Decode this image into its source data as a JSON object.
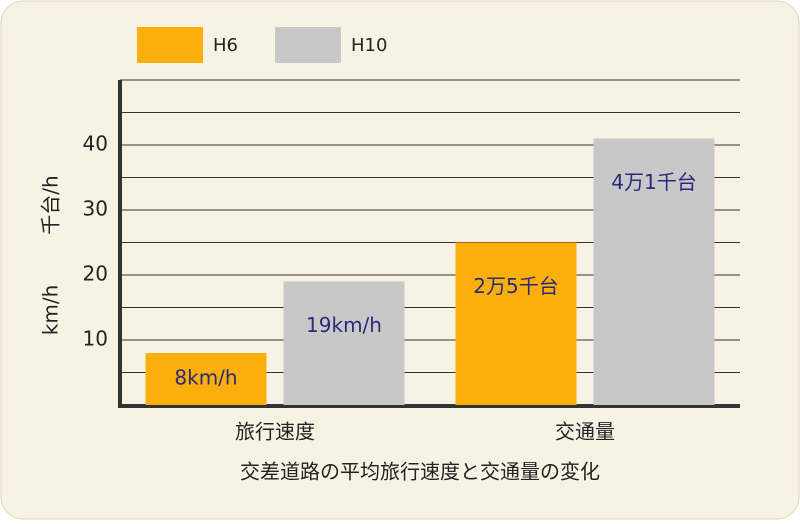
{
  "chart_data": {
    "type": "bar",
    "legend_position": "top-left",
    "ylabel": "km/h",
    "ylabel2": "千台/h",
    "xlabel": "交差道路の平均旅行速度と交通量の変化",
    "categories": [
      "旅行速度",
      "交通量"
    ],
    "series": [
      {
        "name": "H6",
        "color": "#fcaf0a",
        "values": [
          8,
          25
        ],
        "value_labels": [
          "8km/h",
          "2万5千台"
        ]
      },
      {
        "name": "H10",
        "color": "#c8c8c8",
        "values": [
          19,
          41
        ],
        "value_labels": [
          "19km/h",
          "4万1千台"
        ]
      }
    ],
    "ylim": [
      0,
      50
    ],
    "yticks": [
      10,
      20,
      30,
      40
    ],
    "minor_gridlines": [
      5,
      15,
      25,
      35,
      45,
      50
    ],
    "grid": true
  }
}
